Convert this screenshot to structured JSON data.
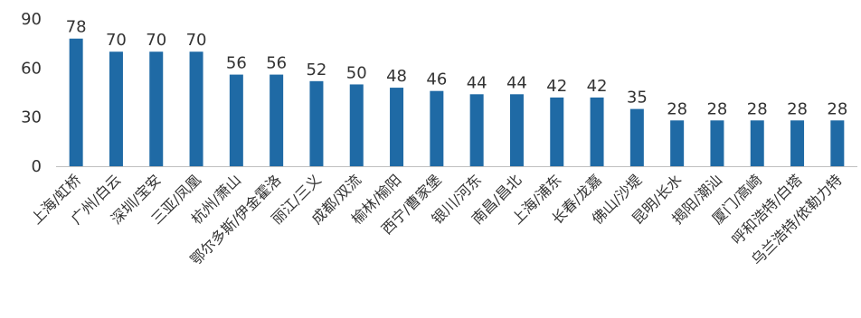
{
  "chart_data": {
    "type": "bar",
    "title": "",
    "xlabel": "",
    "ylabel": "",
    "ylim": [
      0,
      90
    ],
    "yticks": [
      0,
      30,
      60,
      90
    ],
    "grid": "none",
    "legend": "none",
    "bar_color": "#1f6aa5",
    "categories": [
      "上海/虹桥",
      "广州/白云",
      "深圳/宝安",
      "三亚/凤凰",
      "杭州/萧山",
      "鄂尔多斯/伊金霍洛",
      "丽江/三义",
      "成都/双流",
      "榆林/榆阳",
      "西宁/曹家堡",
      "银川/河东",
      "南昌/昌北",
      "上海/浦东",
      "长春/龙嘉",
      "佛山/沙堤",
      "昆明/长水",
      "揭阳/潮汕",
      "厦门/高崎",
      "呼和浩特/白塔",
      "乌兰浩特/依勒力特"
    ],
    "values": [
      78,
      70,
      70,
      70,
      56,
      56,
      52,
      50,
      48,
      46,
      44,
      44,
      42,
      42,
      35,
      28,
      28,
      28,
      28,
      28
    ]
  }
}
